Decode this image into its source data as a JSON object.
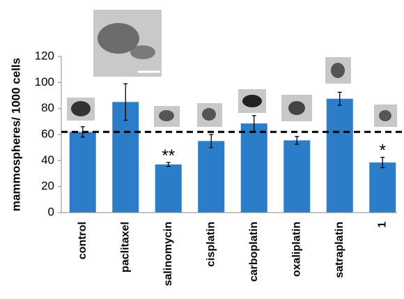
{
  "chart_data": {
    "type": "bar",
    "y_label": "mammospheres/ 1000 cells",
    "categories": [
      "control",
      "paclitaxel",
      "salinomycin",
      "cisplatin",
      "carboplatin",
      "oxaliplatin",
      "satraplatin",
      "1"
    ],
    "values": [
      62,
      85,
      37,
      55,
      68.5,
      55.5,
      87.5,
      38.5
    ],
    "errors": [
      4,
      14,
      1.5,
      5,
      6,
      3,
      5,
      4
    ],
    "color": "#2b7dca",
    "ylim": [
      0,
      120
    ],
    "yticks": [
      0,
      20,
      40,
      60,
      80,
      100,
      120
    ],
    "reference_line": 62,
    "annotations": [
      {
        "text": "**",
        "category": "salinomycin"
      },
      {
        "text": "*",
        "category": "1"
      }
    ],
    "grid": false
  }
}
